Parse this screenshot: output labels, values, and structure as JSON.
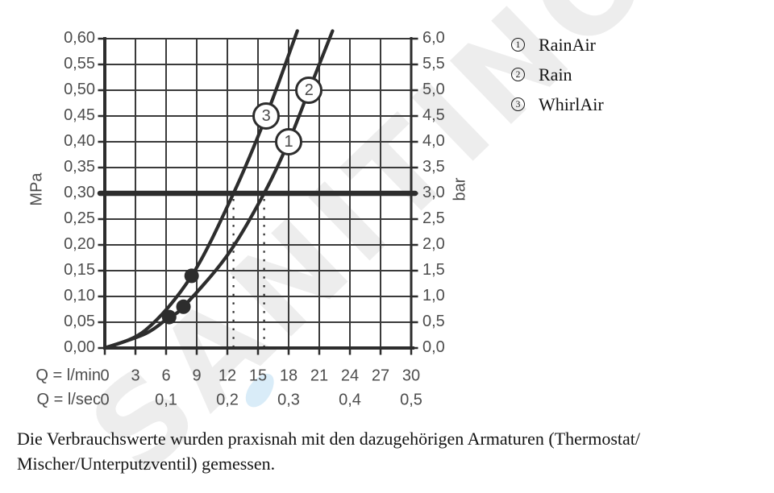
{
  "watermark": {
    "text": "SANITINO",
    "color": "#ededed",
    "drop_color": "#d9ecf8"
  },
  "colors": {
    "ink": "#2d2d2d",
    "grid": "#3a3a3a",
    "tick_text": "#4d4d4d",
    "body_text": "#141414"
  },
  "legend": {
    "items": [
      {
        "number": "1",
        "label": "RainAir"
      },
      {
        "number": "2",
        "label": "Rain"
      },
      {
        "number": "3",
        "label": "WhirlAir"
      }
    ]
  },
  "footnote": {
    "lines": [
      "Die Verbrauchswerte wurden praxisnah mit den dazugehörigen Armaturen (Thermostat/",
      "Mischer/Unterputzventil) gemessen."
    ]
  },
  "chart_data": {
    "type": "line",
    "title": "",
    "x_axis": {
      "label_min": "Q = l/min",
      "label_sec": "Q = l/sec",
      "range_lmin": [
        0,
        30
      ],
      "ticks_lmin": [
        0,
        3,
        6,
        9,
        12,
        15,
        18,
        21,
        24,
        27,
        30
      ],
      "ticks_lsec": [
        {
          "label": "0",
          "lmin": 0
        },
        {
          "label": "0,1",
          "lmin": 6
        },
        {
          "label": "0,2",
          "lmin": 12
        },
        {
          "label": "0,3",
          "lmin": 18
        },
        {
          "label": "0,4",
          "lmin": 24
        },
        {
          "label": "0,5",
          "lmin": 30
        }
      ]
    },
    "y_left": {
      "label": "MPa",
      "range": [
        0,
        0.6
      ],
      "ticks": [
        "0,00",
        "0,05",
        "0,10",
        "0,15",
        "0,20",
        "0,25",
        "0,30",
        "0,35",
        "0,40",
        "0,45",
        "0,50",
        "0,55",
        "0,60"
      ]
    },
    "y_right": {
      "label": "bar",
      "range": [
        0,
        6
      ],
      "ticks": [
        "0,0",
        "0,5",
        "1,0",
        "1,5",
        "2,0",
        "2,5",
        "3,0",
        "3,5",
        "4,0",
        "4,5",
        "5,0",
        "5,5",
        "6,0"
      ]
    },
    "grid": true,
    "reference_line_bar": 3.0,
    "dashed_flow_lines_lmin": [
      12.6,
      15.6
    ],
    "series": [
      {
        "name": "RainAir / Rain (curves 1 and 2, overlapping)",
        "points_lmin_bar": [
          [
            0,
            0
          ],
          [
            4,
            0.28
          ],
          [
            6.3,
            0.6
          ],
          [
            7.7,
            0.8
          ],
          [
            12,
            1.8
          ],
          [
            15.6,
            3.0
          ],
          [
            18,
            4.0
          ],
          [
            20,
            5.0
          ],
          [
            22.3,
            6.15
          ]
        ]
      },
      {
        "name": "WhirlAir (curve 3)",
        "points_lmin_bar": [
          [
            0,
            0
          ],
          [
            4,
            0.35
          ],
          [
            8.5,
            1.4
          ],
          [
            12.6,
            3.0
          ],
          [
            15.8,
            4.5
          ],
          [
            18.85,
            6.15
          ]
        ]
      }
    ],
    "curve_markers": [
      {
        "label": "1",
        "series": "RainAir",
        "lmin": 18.0,
        "bar": 4.0
      },
      {
        "label": "2",
        "series": "Rain",
        "lmin": 20.0,
        "bar": 5.0
      },
      {
        "label": "3",
        "series": "WhirlAir",
        "lmin": 15.8,
        "bar": 4.5
      }
    ],
    "measured_points_lmin_bar": [
      [
        6.3,
        0.6
      ],
      [
        7.7,
        0.8
      ],
      [
        8.5,
        1.4
      ]
    ]
  }
}
